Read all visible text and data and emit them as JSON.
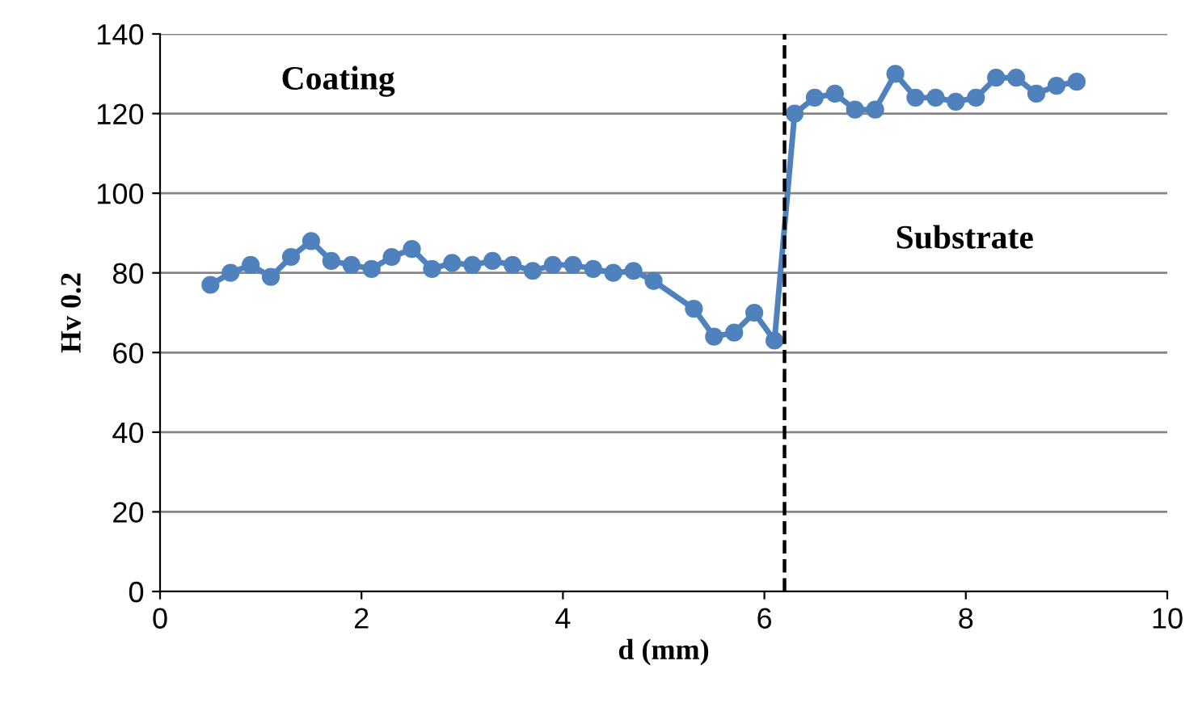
{
  "chart_data": {
    "type": "line",
    "xlabel": "d (mm)",
    "ylabel": "Hv 0.2",
    "x": [
      0.5,
      0.7,
      0.9,
      1.1,
      1.3,
      1.5,
      1.7,
      1.9,
      2.1,
      2.3,
      2.5,
      2.7,
      2.9,
      3.1,
      3.3,
      3.5,
      3.7,
      3.9,
      4.1,
      4.3,
      4.5,
      4.7,
      4.9,
      5.3,
      5.5,
      5.7,
      5.9,
      6.1,
      6.3,
      6.5,
      6.7,
      6.9,
      7.1,
      7.3,
      7.5,
      7.7,
      7.9,
      8.1,
      8.3,
      8.5,
      8.7,
      8.9,
      9.1
    ],
    "series": [
      {
        "color": "#4f81bd",
        "values": [
          77,
          80,
          82,
          79,
          84,
          88,
          83,
          82,
          81,
          84,
          86,
          81,
          82.5,
          82,
          83,
          82,
          80.5,
          82,
          82,
          81,
          80,
          80.5,
          78,
          71,
          64,
          65,
          70,
          63,
          120,
          124,
          125,
          121,
          121,
          130,
          124,
          124,
          123,
          124,
          129,
          129,
          125,
          127,
          128
        ]
      }
    ],
    "xlim": [
      0,
      10
    ],
    "xticks": [
      0,
      2,
      4,
      6,
      8,
      10
    ],
    "ylim": [
      0,
      140
    ],
    "yticks": [
      0,
      20,
      40,
      60,
      80,
      100,
      120,
      140
    ],
    "grid": "y",
    "marker": "circle",
    "line_style": "solid",
    "legend": false,
    "ref_lines": [
      {
        "axis": "x",
        "value": 6.2,
        "color": "#000000",
        "line_style": "dashed"
      }
    ],
    "annotations": [
      "Coating",
      "Substrate"
    ]
  }
}
